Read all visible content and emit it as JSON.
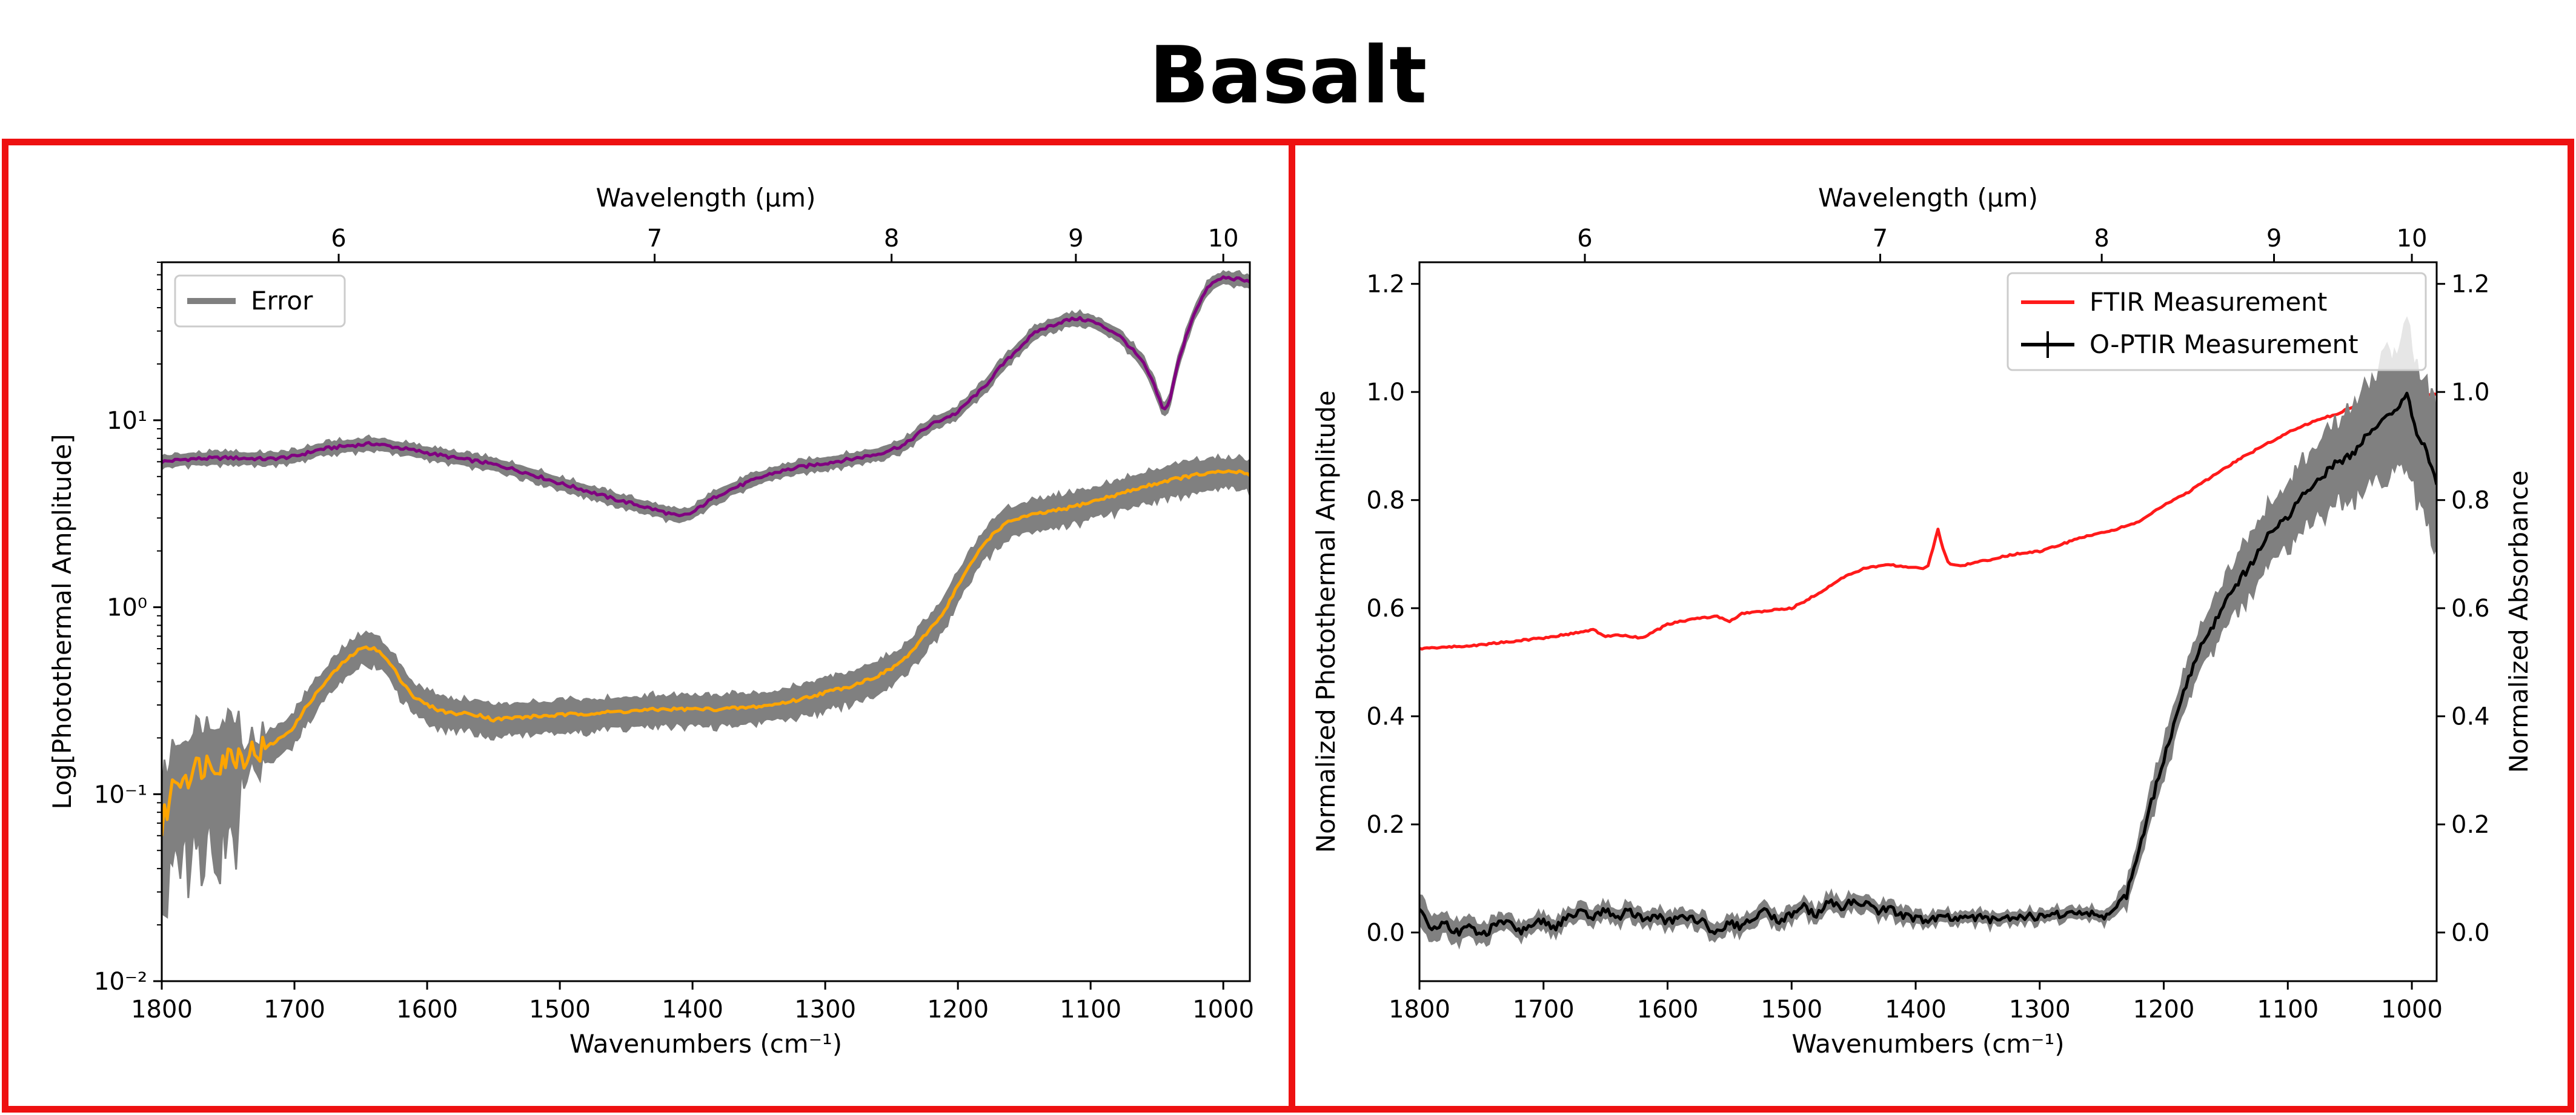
{
  "title": "Basalt",
  "colors": {
    "frame": "#ee1111",
    "error_band": "#808080",
    "purple": "#800080",
    "orange": "#ffa500",
    "ftir": "#ff1a1a",
    "optir": "#000000"
  },
  "chart_data": [
    {
      "type": "line",
      "panel": "left",
      "xlabel": "Wavenumbers (cm⁻¹)",
      "ylabel": "Log[Photothermal Amplitude]",
      "top_xlabel": "Wavelength (μm)",
      "yscale": "log",
      "xlim": [
        1800,
        980
      ],
      "ylim": [
        0.01,
        70
      ],
      "x_ticks": [
        1800,
        1700,
        1600,
        1500,
        1400,
        1300,
        1200,
        1100,
        1000
      ],
      "x_tick_labels": [
        "1800",
        "1700",
        "1600",
        "1500",
        "1400",
        "1300",
        "1200",
        "1100",
        "1000"
      ],
      "y_ticks": [
        0.01,
        0.1,
        1,
        10
      ],
      "y_tick_labels": [
        "10⁻²",
        "10⁻¹",
        "10⁰",
        "10¹"
      ],
      "top_ticks": [
        6,
        7,
        8,
        9,
        10
      ],
      "top_tick_labels": [
        "6",
        "7",
        "8",
        "9",
        "10"
      ],
      "legend": [
        "Error"
      ],
      "legend_position": "top-left",
      "series": [
        {
          "name": "upper (purple)",
          "color": "#800080",
          "error": 0.06,
          "x": [
            1800,
            1780,
            1750,
            1720,
            1700,
            1680,
            1660,
            1640,
            1620,
            1600,
            1580,
            1560,
            1540,
            1520,
            1500,
            1480,
            1460,
            1440,
            1420,
            1410,
            1400,
            1390,
            1380,
            1360,
            1340,
            1320,
            1300,
            1280,
            1260,
            1240,
            1220,
            1200,
            1180,
            1160,
            1140,
            1120,
            1110,
            1100,
            1080,
            1060,
            1050,
            1045,
            1040,
            1030,
            1020,
            1010,
            1000,
            990,
            980
          ],
          "y": [
            6.0,
            6.2,
            6.3,
            6.2,
            6.4,
            7.0,
            7.3,
            7.5,
            7.1,
            6.7,
            6.3,
            6.0,
            5.6,
            5.1,
            4.6,
            4.2,
            3.8,
            3.5,
            3.2,
            3.05,
            3.2,
            3.6,
            4.0,
            4.6,
            5.2,
            5.6,
            5.9,
            6.2,
            6.6,
            7.4,
            9.5,
            11.0,
            15.0,
            22.0,
            30.0,
            34.0,
            35.0,
            34.0,
            29.0,
            20.0,
            14.0,
            11.0,
            13.0,
            25.0,
            40.0,
            53.0,
            58.0,
            57.0,
            55.0
          ]
        },
        {
          "name": "lower (orange)",
          "color": "#ffa500",
          "error": 0.15,
          "x": [
            1800,
            1795,
            1790,
            1780,
            1770,
            1760,
            1750,
            1740,
            1730,
            1720,
            1710,
            1700,
            1690,
            1680,
            1670,
            1660,
            1650,
            1640,
            1630,
            1620,
            1610,
            1600,
            1590,
            1580,
            1570,
            1560,
            1550,
            1540,
            1520,
            1500,
            1480,
            1460,
            1440,
            1420,
            1400,
            1380,
            1360,
            1340,
            1320,
            1300,
            1280,
            1260,
            1250,
            1240,
            1230,
            1220,
            1210,
            1200,
            1190,
            1180,
            1170,
            1160,
            1150,
            1140,
            1120,
            1100,
            1080,
            1060,
            1040,
            1020,
            1000,
            990,
            980
          ],
          "y": [
            0.065,
            0.09,
            0.12,
            0.13,
            0.145,
            0.15,
            0.16,
            0.165,
            0.17,
            0.18,
            0.2,
            0.23,
            0.3,
            0.37,
            0.45,
            0.53,
            0.6,
            0.61,
            0.52,
            0.41,
            0.33,
            0.3,
            0.28,
            0.27,
            0.27,
            0.265,
            0.25,
            0.255,
            0.26,
            0.265,
            0.27,
            0.275,
            0.28,
            0.285,
            0.285,
            0.285,
            0.29,
            0.3,
            0.32,
            0.35,
            0.38,
            0.43,
            0.47,
            0.53,
            0.63,
            0.78,
            0.95,
            1.3,
            1.7,
            2.2,
            2.6,
            2.9,
            3.05,
            3.15,
            3.35,
            3.65,
            4.0,
            4.4,
            4.8,
            5.1,
            5.3,
            5.3,
            5.15
          ]
        }
      ]
    },
    {
      "type": "line",
      "panel": "right",
      "xlabel": "Wavenumbers (cm⁻¹)",
      "ylabel": "Normalized Photothermal Amplitude",
      "ylabel_right": "Normalized Absorbance",
      "top_xlabel": "Wavelength (μm)",
      "xlim": [
        1800,
        980
      ],
      "ylim": [
        -0.09,
        1.24
      ],
      "x_ticks": [
        1800,
        1700,
        1600,
        1500,
        1400,
        1300,
        1200,
        1100,
        1000
      ],
      "x_tick_labels": [
        "1800",
        "1700",
        "1600",
        "1500",
        "1400",
        "1300",
        "1200",
        "1100",
        "1000"
      ],
      "y_ticks": [
        0.0,
        0.2,
        0.4,
        0.6,
        0.8,
        1.0,
        1.2
      ],
      "y_tick_labels": [
        "0.0",
        "0.2",
        "0.4",
        "0.6",
        "0.8",
        "1.0",
        "1.2"
      ],
      "top_ticks": [
        6,
        7,
        8,
        9,
        10
      ],
      "top_tick_labels": [
        "6",
        "7",
        "8",
        "9",
        "10"
      ],
      "legend": [
        "FTIR Measurement",
        "O-PTIR Measurement"
      ],
      "legend_position": "top-right",
      "series": [
        {
          "name": "FTIR Measurement",
          "color": "#ff1a1a",
          "x": [
            1800,
            1780,
            1760,
            1740,
            1720,
            1700,
            1680,
            1660,
            1650,
            1640,
            1620,
            1600,
            1580,
            1560,
            1550,
            1540,
            1520,
            1500,
            1480,
            1460,
            1440,
            1420,
            1400,
            1395,
            1390,
            1385,
            1382,
            1378,
            1374,
            1370,
            1360,
            1340,
            1320,
            1300,
            1280,
            1260,
            1240,
            1220,
            1200,
            1180,
            1160,
            1140,
            1120,
            1100,
            1080,
            1060,
            1040,
            1020,
            1010,
            1000,
            990,
            980
          ],
          "y": [
            0.525,
            0.528,
            0.53,
            0.535,
            0.54,
            0.545,
            0.552,
            0.56,
            0.548,
            0.55,
            0.545,
            0.57,
            0.58,
            0.585,
            0.575,
            0.59,
            0.595,
            0.6,
            0.625,
            0.655,
            0.675,
            0.68,
            0.675,
            0.672,
            0.68,
            0.72,
            0.745,
            0.71,
            0.685,
            0.68,
            0.68,
            0.69,
            0.7,
            0.705,
            0.72,
            0.735,
            0.745,
            0.76,
            0.79,
            0.815,
            0.845,
            0.875,
            0.9,
            0.925,
            0.945,
            0.96,
            0.98,
            1.0,
            1.0,
            0.995,
            0.995,
            0.995
          ]
        },
        {
          "name": "O-PTIR Measurement",
          "color": "#000000",
          "x": [
            1800,
            1790,
            1780,
            1770,
            1760,
            1750,
            1740,
            1730,
            1720,
            1710,
            1700,
            1690,
            1680,
            1670,
            1660,
            1650,
            1640,
            1630,
            1620,
            1610,
            1600,
            1590,
            1580,
            1570,
            1560,
            1550,
            1540,
            1530,
            1520,
            1510,
            1500,
            1490,
            1480,
            1470,
            1460,
            1450,
            1440,
            1430,
            1420,
            1410,
            1400,
            1390,
            1380,
            1370,
            1360,
            1340,
            1320,
            1300,
            1280,
            1260,
            1250,
            1240,
            1230,
            1220,
            1210,
            1200,
            1190,
            1180,
            1170,
            1160,
            1150,
            1140,
            1130,
            1120,
            1110,
            1100,
            1090,
            1080,
            1070,
            1060,
            1050,
            1040,
            1030,
            1020,
            1010,
            1005,
            1000,
            995,
            990,
            985,
            980
          ],
          "y": [
            0.04,
            0.005,
            0.02,
            0.0,
            0.01,
            -0.005,
            0.01,
            0.02,
            0.0,
            0.015,
            0.02,
            0.01,
            0.03,
            0.035,
            0.03,
            0.04,
            0.03,
            0.04,
            0.025,
            0.03,
            0.02,
            0.025,
            0.03,
            0.015,
            0.0,
            0.02,
            0.01,
            0.03,
            0.04,
            0.02,
            0.035,
            0.05,
            0.03,
            0.055,
            0.045,
            0.06,
            0.055,
            0.04,
            0.045,
            0.03,
            0.025,
            0.02,
            0.03,
            0.025,
            0.03,
            0.025,
            0.03,
            0.03,
            0.035,
            0.035,
            0.03,
            0.04,
            0.07,
            0.15,
            0.24,
            0.32,
            0.4,
            0.47,
            0.53,
            0.57,
            0.61,
            0.65,
            0.68,
            0.72,
            0.75,
            0.77,
            0.8,
            0.83,
            0.85,
            0.87,
            0.88,
            0.91,
            0.93,
            0.95,
            0.97,
            1.0,
            0.96,
            0.92,
            0.9,
            0.86,
            0.83
          ],
          "error": [
            0.03,
            0.03,
            0.02,
            0.02,
            0.02,
            0.02,
            0.015,
            0.015,
            0.015,
            0.015,
            0.015,
            0.015,
            0.015,
            0.015,
            0.015,
            0.015,
            0.015,
            0.015,
            0.015,
            0.015,
            0.015,
            0.015,
            0.015,
            0.015,
            0.015,
            0.015,
            0.015,
            0.015,
            0.015,
            0.015,
            0.015,
            0.015,
            0.015,
            0.015,
            0.015,
            0.015,
            0.015,
            0.015,
            0.015,
            0.015,
            0.012,
            0.012,
            0.012,
            0.012,
            0.012,
            0.012,
            0.012,
            0.012,
            0.012,
            0.012,
            0.012,
            0.015,
            0.02,
            0.03,
            0.03,
            0.035,
            0.04,
            0.04,
            0.045,
            0.05,
            0.05,
            0.055,
            0.06,
            0.06,
            0.06,
            0.065,
            0.07,
            0.07,
            0.08,
            0.08,
            0.09,
            0.1,
            0.11,
            0.12,
            0.13,
            0.14,
            0.13,
            0.13,
            0.13,
            0.13,
            0.15
          ]
        }
      ]
    }
  ]
}
